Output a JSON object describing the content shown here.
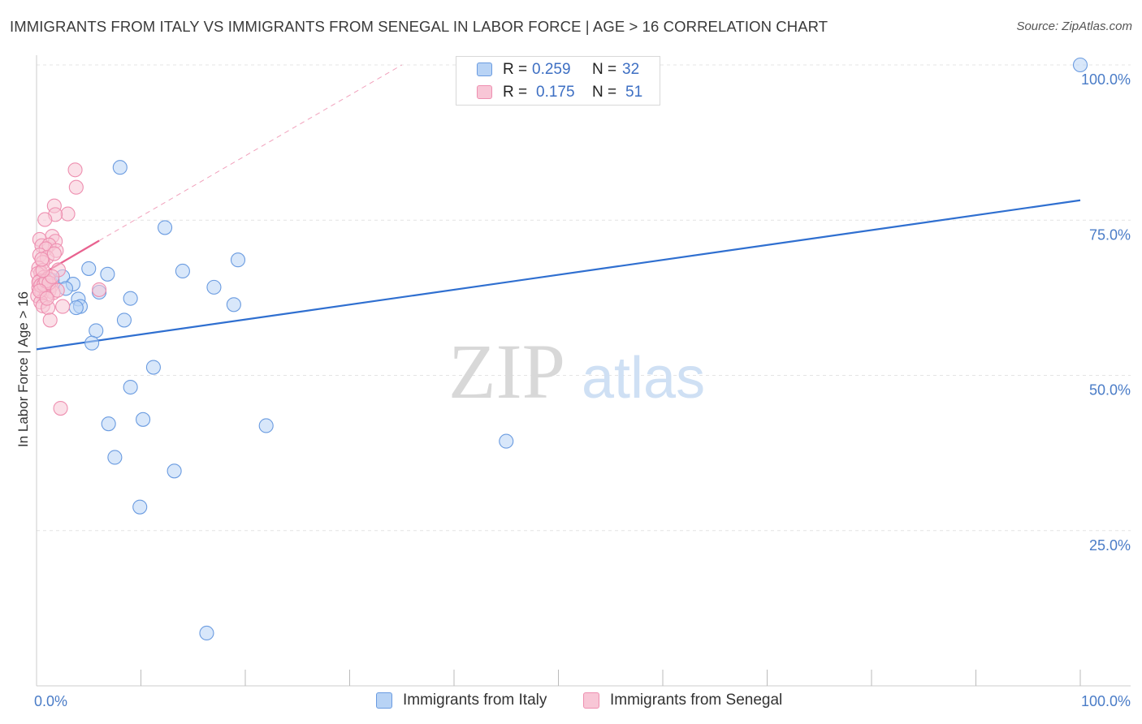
{
  "header": {
    "title": "IMMIGRANTS FROM ITALY VS IMMIGRANTS FROM SENEGAL IN LABOR FORCE | AGE > 16 CORRELATION CHART",
    "source": "Source: ZipAtlas.com"
  },
  "watermark": {
    "zip": "ZIP",
    "atlas": "atlas"
  },
  "legend": {
    "italy": {
      "r_label": "R =",
      "r_value": "0.259",
      "n_label": "N =",
      "n_value": "32"
    },
    "senegal": {
      "r_label": "R =",
      "r_value": "0.175",
      "n_label": "N =",
      "n_value": "51"
    }
  },
  "bottom_legend": {
    "italy": "Immigrants from Italy",
    "senegal": "Immigrants from Senegal"
  },
  "colors": {
    "italy_fill": "#b8d3f5",
    "italy_stroke": "#6a9be0",
    "italy_line": "#2f6fd0",
    "senegal_fill": "#f8c6d6",
    "senegal_stroke": "#ee8fb0",
    "senegal_line": "#e8628f",
    "tick_text": "#4a7cc7",
    "grid": "#e4e4e4"
  },
  "chart_data": {
    "type": "scatter",
    "ylabel": "In Labor Force | Age > 16",
    "xlabel": "",
    "xlim": [
      0,
      100
    ],
    "ylim": [
      0,
      100
    ],
    "x_ticks": [
      "0.0%",
      "100.0%"
    ],
    "y_ticks": [
      {
        "value": 100,
        "label": "100.0%"
      },
      {
        "value": 75,
        "label": "75.0%"
      },
      {
        "value": 50,
        "label": "50.0%"
      },
      {
        "value": 25,
        "label": "25.0%"
      }
    ],
    "grid": true,
    "series": [
      {
        "name": "Immigrants from Italy",
        "points": [
          [
            100,
            100
          ],
          [
            8,
            83.5
          ],
          [
            12.3,
            73.8
          ],
          [
            6.8,
            66.3
          ],
          [
            5,
            67.2
          ],
          [
            14,
            66.8
          ],
          [
            19.3,
            68.6
          ],
          [
            17,
            64.2
          ],
          [
            9,
            62.4
          ],
          [
            6,
            63.4
          ],
          [
            2.5,
            65.9
          ],
          [
            3.5,
            64.7
          ],
          [
            4,
            62.3
          ],
          [
            4.2,
            61.1
          ],
          [
            3.8,
            60.9
          ],
          [
            18.9,
            61.4
          ],
          [
            8.4,
            58.9
          ],
          [
            5.7,
            57.2
          ],
          [
            5.3,
            55.2
          ],
          [
            11.2,
            51.3
          ],
          [
            9,
            48.1
          ],
          [
            10.2,
            42.9
          ],
          [
            6.9,
            42.2
          ],
          [
            22,
            41.9
          ],
          [
            45,
            39.4
          ],
          [
            7.5,
            36.8
          ],
          [
            13.2,
            34.6
          ],
          [
            9.9,
            28.8
          ],
          [
            16.3,
            8.5
          ],
          [
            0.5,
            64.8
          ],
          [
            1.5,
            65.3
          ],
          [
            2.8,
            64
          ]
        ]
      },
      {
        "name": "Immigrants from Senegal",
        "points": [
          [
            3.7,
            83.1
          ],
          [
            3.8,
            80.3
          ],
          [
            1.7,
            77.3
          ],
          [
            3,
            76
          ],
          [
            1.8,
            75.9
          ],
          [
            0.8,
            75.1
          ],
          [
            1.5,
            72.4
          ],
          [
            0.3,
            71.9
          ],
          [
            1.8,
            71.6
          ],
          [
            0.5,
            70.9
          ],
          [
            1.2,
            71
          ],
          [
            0.9,
            70.4
          ],
          [
            1.9,
            70.1
          ],
          [
            0.3,
            69.4
          ],
          [
            1,
            69
          ],
          [
            0.6,
            68.2
          ],
          [
            0.2,
            67.3
          ],
          [
            2.1,
            67
          ],
          [
            0.4,
            66.5
          ],
          [
            0.1,
            66.4
          ],
          [
            0.7,
            65.8
          ],
          [
            1.1,
            65.6
          ],
          [
            0.3,
            65.2
          ],
          [
            0.6,
            64.7
          ],
          [
            1.4,
            64.4
          ],
          [
            0.2,
            64.1
          ],
          [
            0.8,
            63.9
          ],
          [
            1.2,
            63.6
          ],
          [
            0.5,
            63.2
          ],
          [
            1.6,
            63.3
          ],
          [
            0.1,
            62.8
          ],
          [
            0.9,
            62.7
          ],
          [
            6,
            63.8
          ],
          [
            0.4,
            61.8
          ],
          [
            0.6,
            61.2
          ],
          [
            1.1,
            60.9
          ],
          [
            2.5,
            61.1
          ],
          [
            1.3,
            58.9
          ],
          [
            2.3,
            44.7
          ],
          [
            0.2,
            65
          ],
          [
            0.4,
            64.5
          ],
          [
            0.7,
            64.6
          ],
          [
            0.9,
            65.2
          ],
          [
            1.2,
            64.9
          ],
          [
            0.3,
            63.6
          ],
          [
            1.5,
            65.9
          ],
          [
            0.6,
            66.9
          ],
          [
            2,
            63.7
          ],
          [
            1,
            62.4
          ],
          [
            0.5,
            68.7
          ],
          [
            1.7,
            69.6
          ]
        ]
      }
    ],
    "trend_lines": [
      {
        "series": "Immigrants from Italy",
        "from": [
          0,
          54.2
        ],
        "to": [
          100,
          78.2
        ],
        "style": "solid"
      },
      {
        "series": "Immigrants from Senegal",
        "from": [
          0,
          65.8
        ],
        "to": [
          6,
          71.7
        ],
        "style": "solid"
      },
      {
        "series": "Immigrants from Senegal",
        "from": [
          6,
          71.7
        ],
        "to": [
          35,
          100
        ],
        "style": "dashed"
      }
    ]
  }
}
